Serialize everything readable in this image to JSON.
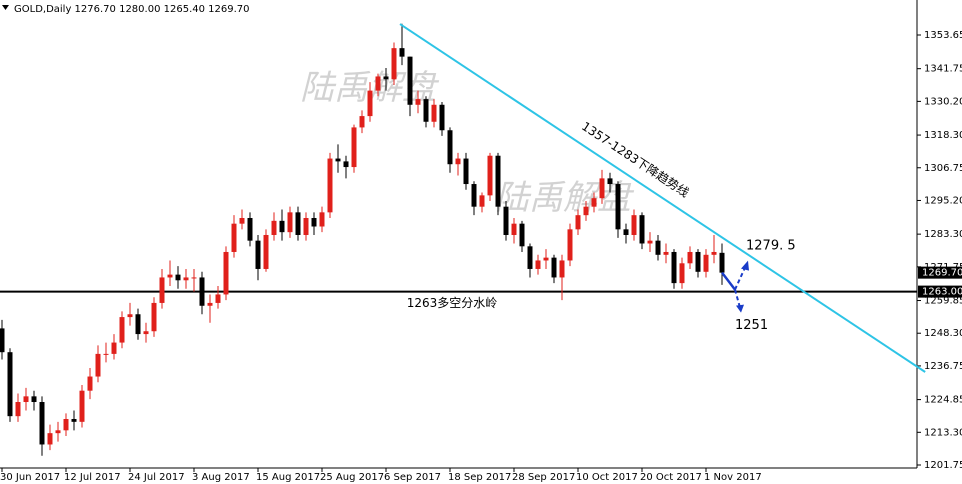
{
  "chart_data": {
    "type": "candlestick",
    "title": "GOLD,Daily  1276.70 1280.00 1265.40 1269.70",
    "up_color": "#e0201b",
    "down_color": "#000000",
    "ylim": [
      1200.69,
      1366.01
    ],
    "yticks": [
      {
        "value": 1353.65,
        "label": "1353.65"
      },
      {
        "value": 1341.75,
        "label": "1341.75"
      },
      {
        "value": 1330.2,
        "label": "1330.20"
      },
      {
        "value": 1318.3,
        "label": "1318.30"
      },
      {
        "value": 1306.75,
        "label": "1306.75"
      },
      {
        "value": 1295.2,
        "label": "1295.20"
      },
      {
        "value": 1283.3,
        "label": "1283.30"
      },
      {
        "value": 1271.75,
        "label": "1271.75"
      },
      {
        "value": 1259.85,
        "label": "1259.85"
      },
      {
        "value": 1248.3,
        "label": "1248.30"
      },
      {
        "value": 1236.75,
        "label": "1236.75"
      },
      {
        "value": 1224.85,
        "label": "1224.85"
      },
      {
        "value": 1213.3,
        "label": "1213.30"
      },
      {
        "value": 1201.75,
        "label": "1201.75"
      }
    ],
    "categories": [
      "30 Jun 2017",
      null,
      null,
      null,
      null,
      null,
      null,
      null,
      "12 Jul 2017",
      null,
      null,
      null,
      null,
      null,
      null,
      null,
      "24 Jul 2017",
      null,
      null,
      null,
      null,
      null,
      null,
      null,
      "3 Aug 2017",
      null,
      null,
      null,
      null,
      null,
      null,
      null,
      "15 Aug 2017",
      null,
      null,
      null,
      null,
      null,
      null,
      null,
      "25 Aug 2017",
      null,
      null,
      null,
      null,
      null,
      null,
      null,
      "6 Sep 2017",
      null,
      null,
      null,
      null,
      null,
      null,
      null,
      "18 Sep 2017",
      null,
      null,
      null,
      null,
      null,
      null,
      null,
      "28 Sep 2017",
      null,
      null,
      null,
      null,
      null,
      null,
      null,
      "10 Oct 2017",
      null,
      null,
      null,
      null,
      null,
      null,
      null,
      "20 Oct 2017",
      null,
      null,
      null,
      null,
      null,
      null,
      null,
      "1 Nov 2017",
      null,
      null
    ],
    "open": [
      1250,
      1241.6,
      1219,
      1224,
      1226,
      1224,
      1209,
      1213,
      1214,
      1218,
      1217,
      1228,
      1233,
      1241,
      1241,
      1245,
      1254,
      1255,
      1248,
      1249,
      1259,
      1268,
      1269,
      1267,
      1268,
      1268,
      1258,
      1259,
      1262,
      1277,
      1287,
      1289,
      1281,
      1271,
      1283,
      1288,
      1284,
      1291,
      1283,
      1289,
      1286,
      1291,
      1310,
      1309,
      1307,
      1321,
      1325,
      1334,
      1339,
      1338,
      1349,
      1346,
      1329,
      1331,
      1323,
      1329,
      1320,
      1308,
      1310,
      1301,
      1293,
      1297,
      1311,
      1293,
      1283,
      1287,
      1279,
      1271,
      1274,
      1275,
      1268,
      1274,
      1285,
      1290,
      1293,
      1296,
      1303,
      1301,
      1285,
      1283,
      1290,
      1280,
      1281,
      1276,
      1277,
      1266,
      1273,
      1277,
      1270,
      1276,
      1276.7
    ],
    "high": [
      1253,
      1243,
      1227,
      1229,
      1228,
      1226,
      1216,
      1217,
      1220,
      1221,
      1230,
      1236,
      1244,
      1245,
      1248,
      1256,
      1259,
      1257,
      1252,
      1261,
      1271,
      1274,
      1272,
      1271,
      1271,
      1270,
      1262,
      1265,
      1279,
      1290,
      1292,
      1291,
      1283,
      1285,
      1291,
      1292,
      1293,
      1293,
      1291,
      1291,
      1293,
      1312,
      1315,
      1311,
      1322,
      1327,
      1337,
      1340,
      1342,
      1351,
      1357.6,
      1346,
      1334,
      1332,
      1331,
      1330,
      1321,
      1312,
      1312,
      1302,
      1298,
      1312,
      1312,
      1295,
      1289,
      1288,
      1280,
      1276,
      1278,
      1276,
      1276,
      1287,
      1292,
      1295,
      1298,
      1306,
      1305,
      1302,
      1287,
      1292,
      1291,
      1284,
      1283,
      1280,
      1278,
      1275,
      1279,
      1278,
      1278,
      1283,
      1280
    ],
    "low": [
      1239,
      1217,
      1217,
      1221,
      1221,
      1205,
      1207,
      1210,
      1212,
      1214,
      1215,
      1225,
      1231,
      1238,
      1239,
      1243,
      1251,
      1246,
      1245,
      1247,
      1257,
      1265,
      1264,
      1264,
      1263,
      1255,
      1252,
      1257,
      1260,
      1275,
      1285,
      1279,
      1267,
      1270,
      1281,
      1281,
      1282,
      1281,
      1281,
      1283,
      1284,
      1289,
      1305,
      1303,
      1305,
      1319,
      1323,
      1332,
      1334,
      1336,
      1343,
      1325,
      1326,
      1321,
      1321,
      1318,
      1305,
      1304,
      1299,
      1290,
      1291,
      1295,
      1290,
      1281,
      1280,
      1277,
      1268,
      1269,
      1271,
      1266,
      1260,
      1272,
      1283,
      1288,
      1291,
      1294,
      1298,
      1282,
      1280,
      1281,
      1278,
      1277,
      1274,
      1273,
      1264,
      1264,
      1271,
      1268,
      1268,
      1273,
      1265.4
    ],
    "close": [
      1241.6,
      1219,
      1224,
      1226,
      1224,
      1209,
      1213,
      1214,
      1218,
      1217,
      1228,
      1233,
      1241,
      1241,
      1245,
      1254,
      1255,
      1248,
      1249,
      1259,
      1268,
      1269,
      1267,
      1268,
      1268,
      1258,
      1259,
      1262,
      1277,
      1287,
      1289,
      1281,
      1271,
      1283,
      1288,
      1284,
      1291,
      1283,
      1289,
      1286,
      1291,
      1310,
      1309,
      1307,
      1321,
      1325,
      1334,
      1339,
      1338,
      1349,
      1346,
      1329,
      1331,
      1323,
      1329,
      1320,
      1308,
      1310,
      1301,
      1293,
      1297,
      1311,
      1293,
      1283,
      1287,
      1279,
      1271,
      1274,
      1275,
      1268,
      1274,
      1285,
      1290,
      1293,
      1296,
      1303,
      1301,
      1285,
      1283,
      1290,
      1280,
      1281,
      1276,
      1277,
      1266,
      1273,
      1277,
      1270,
      1276,
      1277,
      1269.7
    ],
    "last_price": {
      "value": 1269.7,
      "label": "1269.70"
    },
    "hline": {
      "value": 1263,
      "label": "1263.00",
      "text": "1263多空分水岭"
    },
    "trendline": {
      "text": "1357-1283下降趋势线",
      "color": "#2ec4e6",
      "points": [
        {
          "i": 49.75,
          "y": 1357.5
        },
        {
          "i": 115.4,
          "y": 1234.6
        }
      ]
    },
    "targets": [
      {
        "text": "1279. 5",
        "value": 1279.5
      },
      {
        "text": "1251",
        "value": 1251
      }
    ],
    "watermark": "陆禹解盘"
  }
}
